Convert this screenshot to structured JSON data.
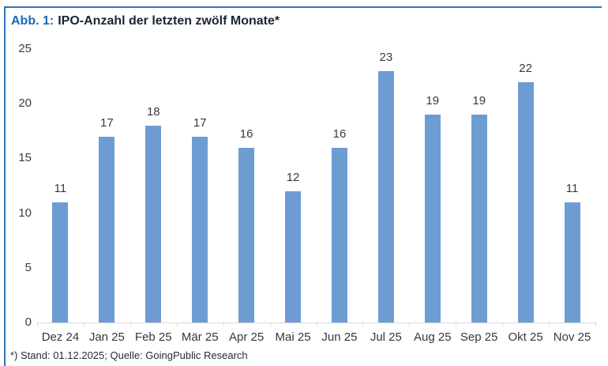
{
  "figure": {
    "label": "Abb. 1:",
    "title": "IPO-Anzahl der letzten zwölf Monate*",
    "footnote": "*) Stand: 01.12.2025; Quelle: GoingPublic Research"
  },
  "colors": {
    "bar": "#6D9CD3",
    "accent_blue": "#1768B4",
    "box_border": "#2E74B5",
    "axis": "#D9D9D9",
    "label_text": "#3A3A3A"
  },
  "chart_data": {
    "type": "bar",
    "title": "IPO-Anzahl der letzten zwölf Monate*",
    "categories": [
      "Dez 24",
      "Jan 25",
      "Feb 25",
      "Mär 25",
      "Apr 25",
      "Mai 25",
      "Jun 25",
      "Jul 25",
      "Aug 25",
      "Sep 25",
      "Okt 25",
      "Nov 25"
    ],
    "values": [
      11,
      17,
      18,
      17,
      16,
      12,
      16,
      23,
      19,
      19,
      22,
      11
    ],
    "xlabel": "",
    "ylabel": "",
    "ylim": [
      0,
      25
    ],
    "yticks": [
      0,
      5,
      10,
      15,
      20,
      25
    ],
    "grid": false,
    "data_labels": true,
    "legend": "none"
  }
}
